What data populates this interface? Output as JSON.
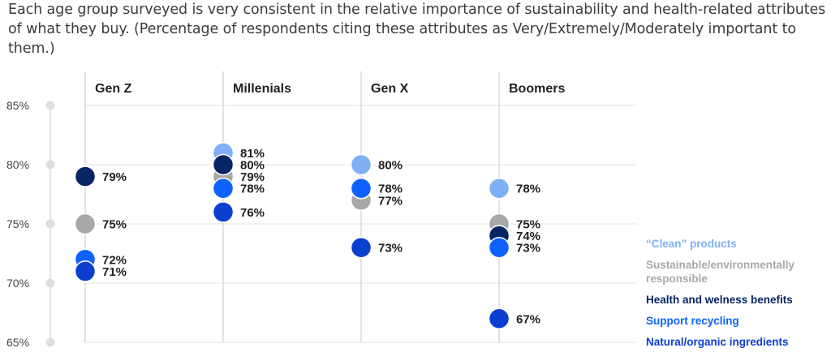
{
  "header": {
    "subtitle": "Each age group surveyed is very consistent in the relative importance of sustainability and health-related attributes of what they buy. (Percentage of respondents citing these attributes as Very/Extremely/Moderately important to them.)"
  },
  "chart_data": {
    "type": "scatter",
    "title": "",
    "ylim": [
      65,
      85
    ],
    "y_ticks": [
      "85%",
      "80%",
      "75%",
      "70%",
      "65%"
    ],
    "y_tick_values": [
      85,
      80,
      75,
      70,
      65
    ],
    "grid": true,
    "legend_position": "bottom-right",
    "categories": [
      "Gen Z",
      "Millenials",
      "Gen X",
      "Boomers"
    ],
    "series": [
      {
        "name": "“Clean” products",
        "color": "#7fb0f4",
        "values": [
          75,
          81,
          80,
          78
        ]
      },
      {
        "name": "Sustainable/environmentally responsible",
        "color": "#a8a8a8",
        "values": [
          75,
          79,
          77,
          75
        ]
      },
      {
        "name": "Health and welness benefits",
        "color": "#072464",
        "values": [
          79,
          80,
          78,
          74
        ]
      },
      {
        "name": "Support recycling",
        "color": "#0d62ff",
        "values": [
          72,
          78,
          78,
          73
        ]
      },
      {
        "name": "Natural/organic ingredients",
        "color": "#0a3fd0",
        "values": [
          71,
          76,
          73,
          67
        ]
      }
    ],
    "point_labels": [
      [
        "79%",
        "75%",
        "72%",
        "71%"
      ],
      [
        "81%",
        "80%",
        "79%",
        "78%",
        "76%"
      ],
      [
        "80%",
        "78%",
        "77%",
        "73%"
      ],
      [
        "78%",
        "75%",
        "74%",
        "73%",
        "67%"
      ]
    ]
  },
  "legend": {
    "items": [
      {
        "label": "“Clean” products",
        "color": "#7fb0f4"
      },
      {
        "label": "Sustainable/environmentally responsible",
        "color": "#a8a8a8"
      },
      {
        "label": "Health and welness benefits",
        "color": "#072464"
      },
      {
        "label": "Support recycling",
        "color": "#0d62ff"
      },
      {
        "label": "Natural/organic ingredients",
        "color": "#0a3fd0"
      }
    ]
  }
}
